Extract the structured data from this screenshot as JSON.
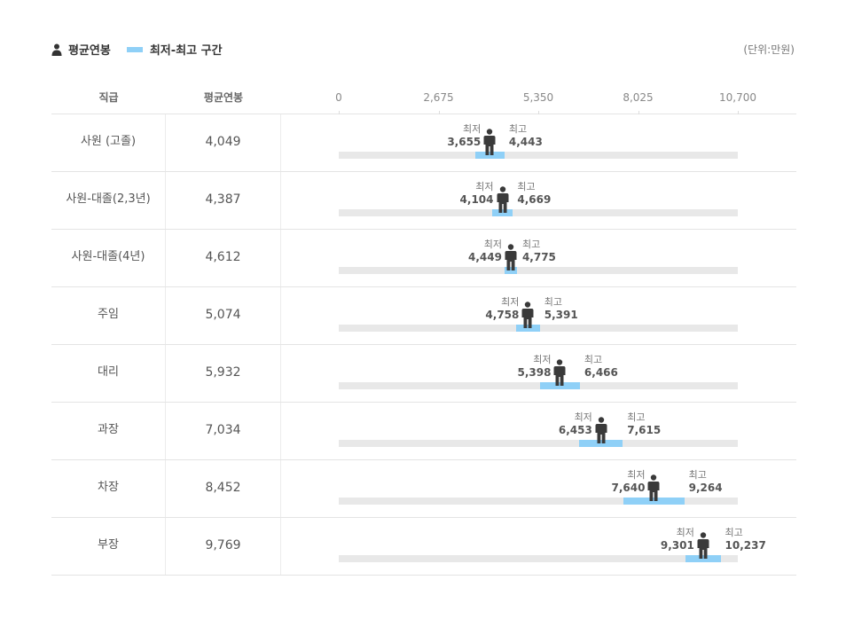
{
  "legend": {
    "avg_label": "평균연봉",
    "range_label": "최저-최고 구간",
    "unit": "(단위:만원)",
    "icons": {
      "avg": "person-icon",
      "range": "range-bar-swatch"
    }
  },
  "table": {
    "col_rank": "직급",
    "col_avg": "평균연봉",
    "min_caption": "최저",
    "max_caption": "최고"
  },
  "colors": {
    "range": "#8fd0f7",
    "track": "#e8e8e8",
    "figure": "#3a3a3a"
  },
  "chart_data": {
    "type": "range_bar",
    "axis": {
      "min": 0,
      "max": 10700,
      "ticks": [
        0,
        2675,
        5350,
        8025,
        10700
      ],
      "tick_labels": [
        "0",
        "2,675",
        "5,350",
        "8,025",
        "10,700"
      ]
    },
    "categories": [
      "사원 (고졸)",
      "사원-대졸(2,3년)",
      "사원-대졸(4년)",
      "주임",
      "대리",
      "과장",
      "차장",
      "부장"
    ],
    "avg": [
      4049,
      4387,
      4612,
      5074,
      5932,
      7034,
      8452,
      9769
    ],
    "avg_labels": [
      "4,049",
      "4,387",
      "4,612",
      "5,074",
      "5,932",
      "7,034",
      "8,452",
      "9,769"
    ],
    "min": [
      3655,
      4104,
      4449,
      4758,
      5398,
      6453,
      7640,
      9301
    ],
    "min_labels": [
      "3,655",
      "4,104",
      "4,449",
      "4,758",
      "5,398",
      "6,453",
      "7,640",
      "9,301"
    ],
    "max": [
      4443,
      4669,
      4775,
      5391,
      6466,
      7615,
      9264,
      10237
    ],
    "max_labels": [
      "4,443",
      "4,669",
      "4,775",
      "5,391",
      "6,466",
      "7,615",
      "9,264",
      "10,237"
    ]
  }
}
